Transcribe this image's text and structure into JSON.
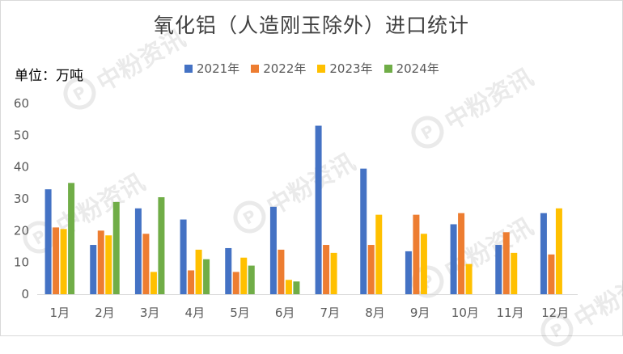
{
  "title": "氧化铝（人造刚玉除外）进口统计",
  "unit_label": "单位：万吨",
  "watermark": "中粉资讯",
  "colors": {
    "2021年": "#4472C4",
    "2022年": "#ED7D31",
    "2023年": "#FFC000",
    "2024年": "#70AD47"
  },
  "chart_data": {
    "type": "bar",
    "categories": [
      "1月",
      "2月",
      "3月",
      "4月",
      "5月",
      "6月",
      "7月",
      "8月",
      "9月",
      "10月",
      "11月",
      "12月"
    ],
    "series": [
      {
        "name": "2021年",
        "values": [
          33,
          15.5,
          27,
          23.5,
          14.5,
          27.5,
          53,
          39.5,
          13.5,
          22,
          15.5,
          25.5
        ]
      },
      {
        "name": "2022年",
        "values": [
          21,
          20,
          19,
          7.5,
          7,
          14,
          15.5,
          15.5,
          25,
          25.5,
          19.5,
          12.5
        ]
      },
      {
        "name": "2023年",
        "values": [
          20.5,
          18.5,
          7,
          14,
          11.5,
          4.5,
          13,
          25,
          19,
          9.5,
          13,
          27
        ]
      },
      {
        "name": "2024年",
        "values": [
          35,
          29,
          30.5,
          11,
          9,
          4,
          null,
          null,
          null,
          null,
          null,
          null
        ]
      }
    ],
    "ylim": [
      0,
      60
    ],
    "yticks": [
      0,
      10,
      20,
      30,
      40,
      50,
      60
    ],
    "grid": false,
    "legend": "top"
  }
}
